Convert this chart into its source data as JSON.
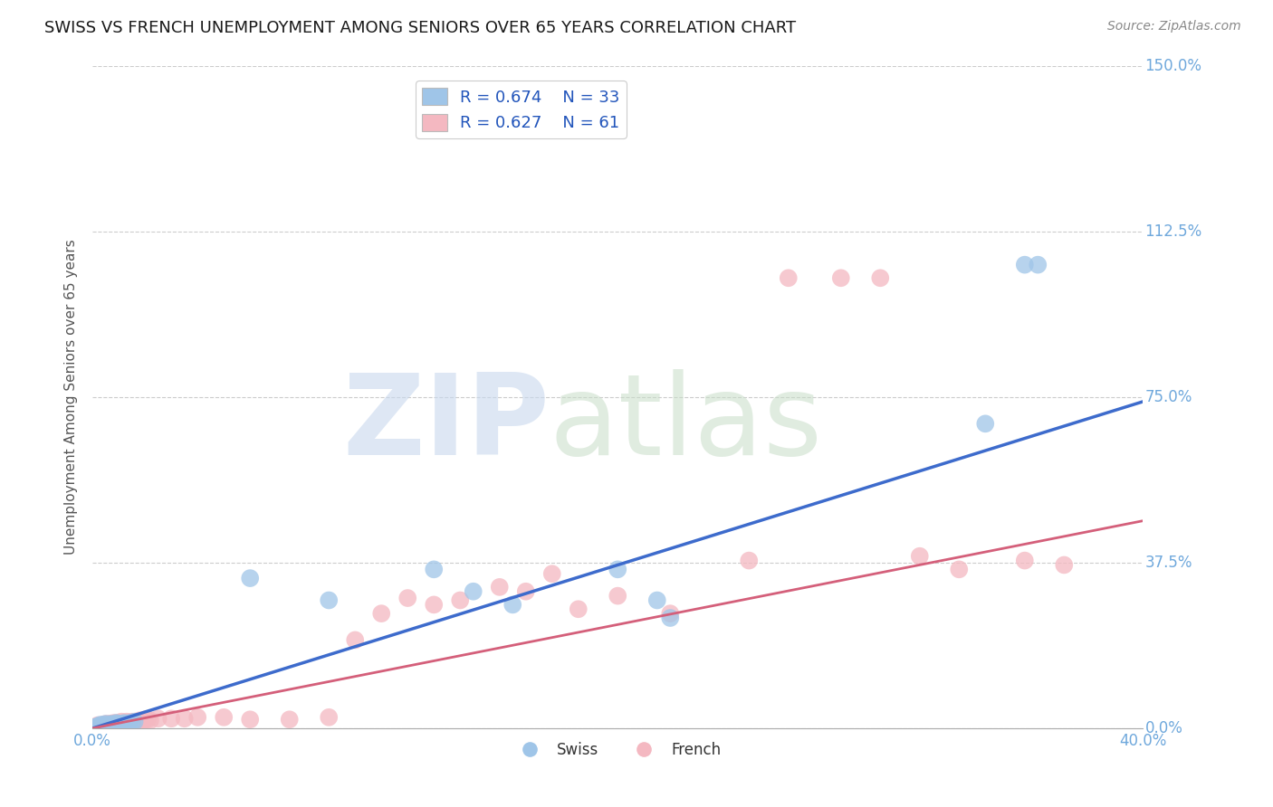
{
  "title": "SWISS VS FRENCH UNEMPLOYMENT AMONG SENIORS OVER 65 YEARS CORRELATION CHART",
  "source": "Source: ZipAtlas.com",
  "ylabel": "Unemployment Among Seniors over 65 years",
  "xlabel": "",
  "xlim": [
    0.0,
    0.4
  ],
  "ylim": [
    0.0,
    1.5
  ],
  "yticks": [
    0.0,
    0.375,
    0.75,
    1.125,
    1.5
  ],
  "ytick_labels": [
    "0.0%",
    "37.5%",
    "75.0%",
    "112.5%",
    "150.0%"
  ],
  "xticks": [
    0.0,
    0.4
  ],
  "xtick_labels": [
    "0.0%",
    "40.0%"
  ],
  "swiss_R": 0.674,
  "swiss_N": 33,
  "french_R": 0.627,
  "french_N": 61,
  "swiss_color": "#9fc5e8",
  "french_color": "#f4b8c1",
  "swiss_line_color": "#3d6bcc",
  "french_line_color": "#d45f7a",
  "tick_color": "#6fa8dc",
  "background_color": "#ffffff",
  "grid_color": "#cccccc",
  "swiss_x": [
    0.001,
    0.002,
    0.003,
    0.003,
    0.004,
    0.004,
    0.005,
    0.005,
    0.005,
    0.006,
    0.007,
    0.007,
    0.008,
    0.009,
    0.009,
    0.01,
    0.011,
    0.012,
    0.012,
    0.014,
    0.015,
    0.016,
    0.06,
    0.09,
    0.13,
    0.145,
    0.16,
    0.2,
    0.215,
    0.22,
    0.34,
    0.355,
    0.36
  ],
  "swiss_y": [
    0.003,
    0.005,
    0.005,
    0.008,
    0.005,
    0.008,
    0.005,
    0.007,
    0.01,
    0.007,
    0.008,
    0.01,
    0.008,
    0.01,
    0.012,
    0.01,
    0.01,
    0.01,
    0.012,
    0.012,
    0.012,
    0.015,
    0.34,
    0.29,
    0.36,
    0.31,
    0.28,
    0.36,
    0.29,
    0.25,
    0.69,
    1.05,
    1.05
  ],
  "french_x": [
    0.001,
    0.002,
    0.002,
    0.003,
    0.003,
    0.004,
    0.004,
    0.005,
    0.005,
    0.005,
    0.006,
    0.006,
    0.007,
    0.007,
    0.008,
    0.008,
    0.009,
    0.009,
    0.01,
    0.01,
    0.011,
    0.011,
    0.012,
    0.013,
    0.013,
    0.014,
    0.015,
    0.016,
    0.017,
    0.018,
    0.019,
    0.02,
    0.021,
    0.022,
    0.025,
    0.03,
    0.035,
    0.04,
    0.05,
    0.06,
    0.075,
    0.09,
    0.1,
    0.11,
    0.12,
    0.13,
    0.14,
    0.155,
    0.165,
    0.175,
    0.185,
    0.2,
    0.22,
    0.25,
    0.265,
    0.285,
    0.3,
    0.315,
    0.33,
    0.355,
    0.37
  ],
  "french_y": [
    0.003,
    0.005,
    0.007,
    0.005,
    0.007,
    0.005,
    0.008,
    0.005,
    0.007,
    0.01,
    0.007,
    0.01,
    0.007,
    0.01,
    0.008,
    0.012,
    0.008,
    0.012,
    0.01,
    0.012,
    0.01,
    0.015,
    0.01,
    0.012,
    0.015,
    0.012,
    0.015,
    0.015,
    0.012,
    0.018,
    0.015,
    0.02,
    0.02,
    0.018,
    0.022,
    0.022,
    0.022,
    0.025,
    0.025,
    0.02,
    0.02,
    0.025,
    0.2,
    0.26,
    0.295,
    0.28,
    0.29,
    0.32,
    0.31,
    0.35,
    0.27,
    0.3,
    0.26,
    0.38,
    1.02,
    1.02,
    1.02,
    0.39,
    0.36,
    0.38,
    0.37
  ]
}
